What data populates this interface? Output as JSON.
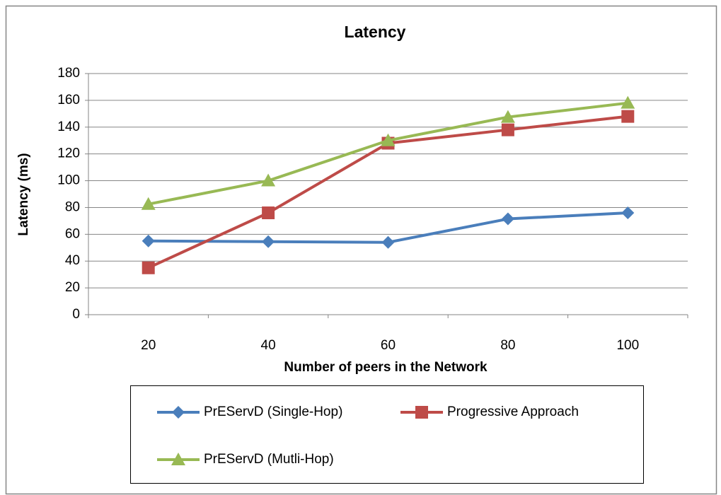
{
  "chart_data": {
    "type": "line",
    "title": "Latency",
    "x_label": "Number of peers in the Network",
    "y_label": "Latency (ms)",
    "categories": [
      "20",
      "40",
      "60",
      "80",
      "100"
    ],
    "series": [
      {
        "name": "PrEServD (Single-Hop)",
        "color": "#4a7ebb",
        "marker": "diamond",
        "values": [
          55,
          54.5,
          54,
          71.5,
          76
        ]
      },
      {
        "name": "Progressive Approach",
        "color": "#be4b48",
        "marker": "square",
        "values": [
          35,
          76,
          128,
          138,
          148
        ]
      },
      {
        "name": "PrEServD (Mutli-Hop)",
        "color": "#98b954",
        "marker": "triangle",
        "values": [
          82.5,
          100,
          130,
          147.5,
          158
        ]
      }
    ],
    "ylim": [
      0,
      180
    ],
    "yticks": [
      0,
      20,
      40,
      60,
      80,
      100,
      120,
      140,
      160,
      180
    ],
    "grid": true,
    "legend": "bottom"
  }
}
